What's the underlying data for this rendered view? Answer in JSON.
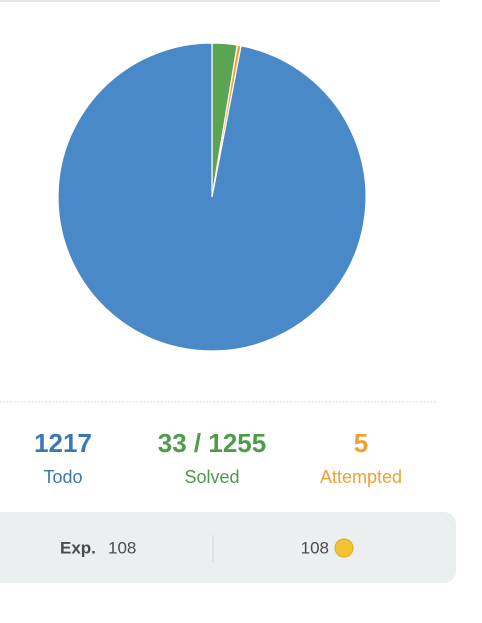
{
  "chart_data": {
    "type": "pie",
    "categories": [
      "Solved",
      "Attempted",
      "Todo"
    ],
    "values": [
      33,
      5,
      1217
    ],
    "value_labels": [
      "33 / 1255",
      "5",
      "1217"
    ],
    "colors": [
      "#5aa454",
      "#f0a435",
      "#4a89c8"
    ],
    "text_colors": [
      "#4f9a4b",
      "#f0a030",
      "#3a78b5"
    ]
  },
  "footer": {
    "exp_label": "Exp.",
    "exp_value": "108",
    "coins": "108"
  }
}
